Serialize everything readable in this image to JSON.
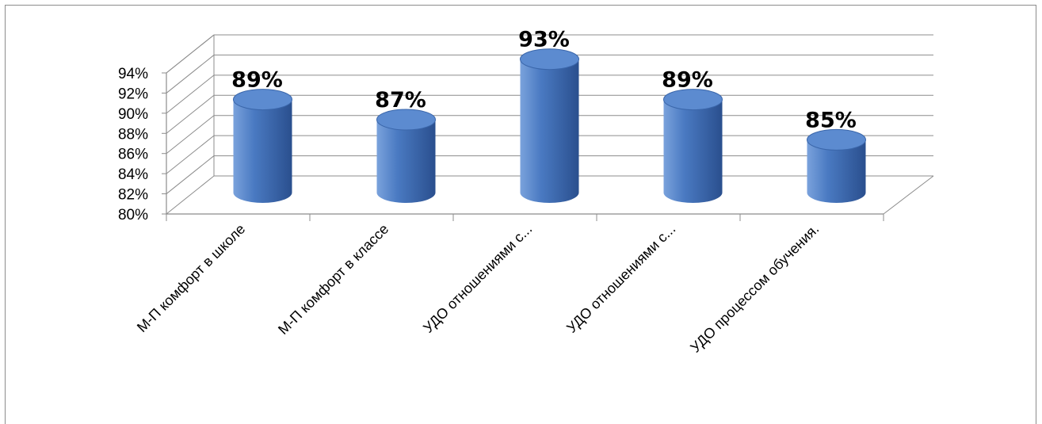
{
  "chart_data": {
    "type": "bar",
    "style": "3d-cylinder",
    "categories": [
      "М-П комфорт в школе",
      "М-П комфорт в классе",
      "УДО отношениями с...",
      "УДО отношениями с...",
      "УДО процессом обучения."
    ],
    "values": [
      89,
      87,
      93,
      89,
      85
    ],
    "data_labels": [
      "89%",
      "87%",
      "93%",
      "89%",
      "85%"
    ],
    "ylim": [
      80,
      94
    ],
    "yticks": [
      80,
      82,
      84,
      86,
      88,
      90,
      92,
      94
    ],
    "ytick_labels": [
      "80%",
      "82%",
      "84%",
      "86%",
      "88%",
      "90%",
      "92%",
      "94%"
    ],
    "grid": true,
    "legend": "none",
    "colors": {
      "bar_light": "#7aa2dc",
      "bar_mid": "#4a7ac2",
      "bar_dark": "#2a4f8e",
      "bar_top": "#5c8bd0",
      "gridline": "#8c8c8c"
    }
  }
}
